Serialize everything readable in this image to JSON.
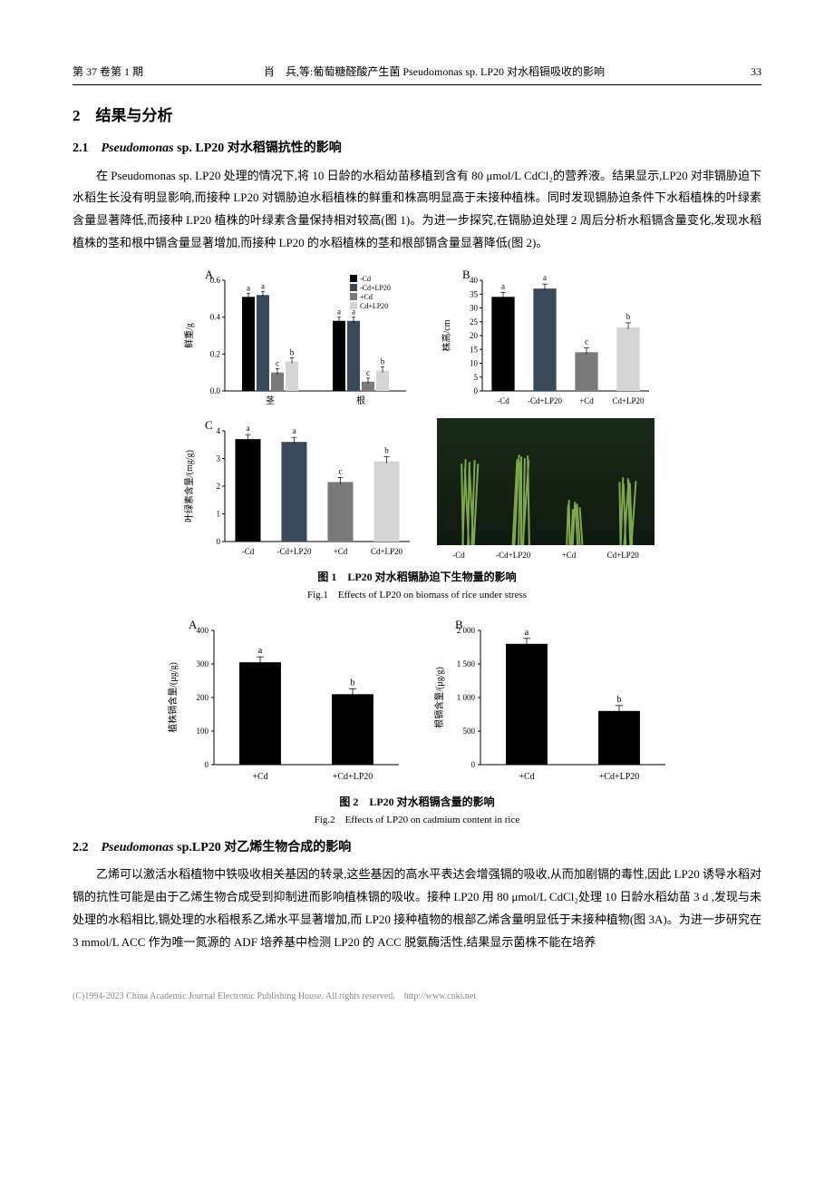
{
  "header": {
    "left": "第 37 卷第 1 期",
    "center": "肖　兵,等:葡萄糖醛酸产生菌 Pseudomonas sp. LP20 对水稻镉吸收的影响",
    "page": "33"
  },
  "section2": {
    "num": "2",
    "title": "结果与分析"
  },
  "sub21": {
    "num": "2.1",
    "title": "Pseudomonas sp. LP20 对水稻镉抗性的影响",
    "para": "在 Pseudomonas sp. LP20 处理的情况下,将 10 日龄的水稻幼苗移植到含有 80 μmol/L CdCl₂的营养液。结果显示,LP20 对非镉胁迫下水稻生长没有明显影响,而接种 LP20 对镉胁迫水稻植株的鲜重和株高明显高于未接种植株。同时发现镉胁迫条件下水稻植株的叶绿素含量显著降低,而接种 LP20 植株的叶绿素含量保持相对较高(图 1)。为进一步探究,在镉胁迫处理 2 周后分析水稻镉含量变化,发现水稻植株的茎和根中镉含量显著增加,而接种 LP20 的水稻植株的茎和根部镉含量显著降低(图 2)。"
  },
  "fig1": {
    "legend": [
      "-Cd",
      "-Cd+LP20",
      "+Cd",
      "Cd+LP20"
    ],
    "legend_colors": [
      "#000000",
      "#3a4a5a",
      "#7a7a7a",
      "#d5d5d5"
    ],
    "panelA": {
      "label": "A",
      "ylabel": "鲜重/g",
      "ylim": [
        0,
        0.6
      ],
      "ytick_step": 0.2,
      "groups": [
        "茎",
        "根"
      ],
      "values": [
        [
          0.51,
          0.52,
          0.1,
          0.16
        ],
        [
          0.38,
          0.38,
          0.05,
          0.11
        ]
      ],
      "sig": [
        [
          "a",
          "a",
          "c",
          "b"
        ],
        [
          "a",
          "a",
          "c",
          "b"
        ]
      ]
    },
    "panelB": {
      "label": "B",
      "ylabel": "株高/cm",
      "ylim": [
        0,
        40
      ],
      "ytick_step": 5,
      "categories": [
        "-Cd",
        "-Cd+LP20",
        "+Cd",
        "Cd+LP20"
      ],
      "values": [
        34,
        37,
        14,
        23
      ],
      "sig": [
        "a",
        "a",
        "c",
        "b"
      ]
    },
    "panelC": {
      "label": "C",
      "ylabel": "叶绿素含量/(mg/g)",
      "ylim": [
        0,
        4
      ],
      "ytick_step": 1,
      "categories": [
        "-Cd",
        "-Cd+LP20",
        "+Cd",
        "Cd+LP20"
      ],
      "values": [
        3.7,
        3.6,
        2.15,
        2.9
      ],
      "sig": [
        "a",
        "a",
        "c",
        "b"
      ]
    },
    "panelD": {
      "label": "D",
      "categories": [
        "-Cd",
        "-Cd+LP20",
        "+Cd",
        "Cd+LP20"
      ],
      "heights": [
        [
          90,
          95,
          85,
          92,
          88,
          94,
          90
        ],
        [
          95,
          100,
          92,
          98,
          96,
          94,
          99
        ],
        [
          45,
          50,
          40,
          48,
          44,
          46,
          42
        ],
        [
          70,
          75,
          68,
          72,
          74,
          69,
          71
        ]
      ]
    },
    "caption_cn": "图 1　LP20 对水稻镉胁迫下生物量的影响",
    "caption_en": "Fig.1　Effects of LP20 on biomass of rice under stress"
  },
  "fig2": {
    "panelA": {
      "label": "A",
      "ylabel": "植株镉含量/(μg/g)",
      "ylim": [
        0,
        400
      ],
      "ytick_step": 100,
      "categories": [
        "+Cd",
        "+Cd+LP20"
      ],
      "values": [
        305,
        210
      ],
      "sig": [
        "a",
        "b"
      ]
    },
    "panelB": {
      "label": "B",
      "ylabel": "根镉含量/(μg/g)",
      "ylim": [
        0,
        2000
      ],
      "ytick_step": 500,
      "categories": [
        "+Cd",
        "+Cd+LP20"
      ],
      "values": [
        1800,
        800
      ],
      "sig": [
        "a",
        "b"
      ]
    },
    "caption_cn": "图 2　LP20 对水稻镉含量的影响",
    "caption_en": "Fig.2　Effects of LP20 on cadmium content in rice"
  },
  "sub22": {
    "num": "2.2",
    "title": "Pseudomonas sp.LP20 对乙烯生物合成的影响",
    "para": "乙烯可以激活水稻植物中铁吸收相关基因的转录,这些基因的高水平表达会增强镉的吸收,从而加剧镉的毒性,因此 LP20 诱导水稻对镉的抗性可能是由于乙烯生物合成受到抑制进而影响植株镉的吸收。接种 LP20 用 80 μmol/L CdCl₂处理 10 日龄水稻幼苗 3 d ,发现与未处理的水稻相比,镉处理的水稻根系乙烯水平显著增加,而 LP20 接种植物的根部乙烯含量明显低于未接种植物(图 3A)。为进一步研究在 3 mmol/L ACC 作为唯一氮源的 ADF 培养基中检测 LP20 的 ACC 脱氨酶活性,结果显示菌株不能在培养"
  },
  "footer": "(C)1994-2023 China Academic Journal Electronic Publishing House. All rights reserved.　http://www.cnki.net"
}
